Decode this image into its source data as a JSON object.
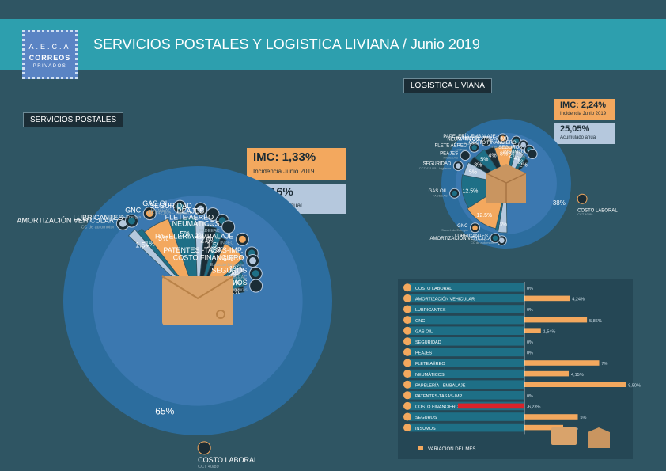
{
  "header": {
    "title": "SERVICIOS POSTALES Y LOGISTICA LIVIANA  / Junio 2019"
  },
  "logo": {
    "line1": "A.E.C.A",
    "line2": "CORREOS",
    "line3": "PRIVADOS"
  },
  "postales": {
    "section_label": "SERVICIOS POSTALES",
    "imc_title": "IMC: 1,33%",
    "imc_sub": "Incidencia Junio 2019",
    "acc_title": "22,16%",
    "acc_sub": "Acumulado anual"
  },
  "logistica": {
    "section_label": "LOGISTICA LIVIANA",
    "imc_title": "IMC: 2,24%",
    "imc_sub": "Incidencia Junio 2019",
    "acc_title": "25,05%",
    "acc_sub": "Acumulado anual"
  },
  "legend": {
    "label": "VARIACIÓN DEL MES"
  },
  "colors": {
    "orange": "#f3a85e",
    "blue": "#3b78b0",
    "teal": "#1e6f86",
    "light": "#b5c8dd",
    "dark": "#1b2d36",
    "red": "#d9232a"
  },
  "chart_data": [
    {
      "type": "pie",
      "title": "SERVICIOS POSTALES",
      "unit": "%",
      "slices": [
        {
          "name": "COSTO LABORAL",
          "note": "CCT 40/89",
          "value": 65,
          "label": "65%",
          "color": "#3b78b0",
          "icon": "envelope-icon"
        },
        {
          "name": "AMORTIZACIÓN VEHICULAR",
          "note": "CC de automotor",
          "value": 1.5,
          "label": "1.5%",
          "color": "#b5c8dd",
          "icon": "truck-icon"
        },
        {
          "name": "LUBRICANTES",
          "note": "",
          "value": 1,
          "label": "1%",
          "color": "#1e6f86",
          "icon": "oil-can-icon"
        },
        {
          "name": "GNC",
          "note": "Secret. de Energía",
          "value": 5,
          "label": "5%",
          "color": "#f3a85e",
          "icon": "gas-cylinder-icon"
        },
        {
          "name": "GAS OIL",
          "note": "FADEEAC",
          "value": 5,
          "label": "5%",
          "color": "#1e6f86",
          "icon": "fuel-pump-icon"
        },
        {
          "name": "SEGURIDAD",
          "note": "CCT 421/05 - Vigilador",
          "value": 2,
          "label": "2%",
          "color": "#b5c8dd",
          "icon": "guard-icon"
        },
        {
          "name": "PEAJES",
          "note": "FADEEAC",
          "value": 2.5,
          "label": "2.5%",
          "color": "#1b2d36",
          "icon": "toll-icon"
        },
        {
          "name": "FLETE AÉREO",
          "note": "Jet Pack",
          "value": 1.5,
          "label": "1.5%",
          "color": "#1e6f86",
          "icon": "plane-icon"
        },
        {
          "name": "NEUMÁTICOS",
          "note": "FADEEAC",
          "value": 1.5,
          "label": "1.5%",
          "color": "#1b2d36",
          "icon": "tire-icon"
        },
        {
          "name": "PAPELERÍA-EMBALAJE",
          "note": "INDEC",
          "value": 6,
          "label": "6%",
          "color": "#f3a85e",
          "icon": "package-icon"
        },
        {
          "name": "PATENTES -TASAS-IMP.",
          "note": "Boletos",
          "value": 1,
          "label": "1%",
          "color": "#1e6f86",
          "icon": "license-plate-icon"
        },
        {
          "name": "COSTO FINANCIERO",
          "note": "Extracto bancario",
          "value": 2,
          "label": "2%",
          "color": "#b5c8dd",
          "icon": "chart-icon"
        },
        {
          "name": "SEGUROS",
          "note": "FADEEAC",
          "value": 4,
          "label": "4%",
          "color": "#1e6f86",
          "icon": "shield-icon"
        },
        {
          "name": "INSUMOS",
          "note": "Facturas",
          "value": 2,
          "label": "2%",
          "color": "#1b2d36",
          "icon": "invoice-icon"
        }
      ]
    },
    {
      "type": "pie",
      "title": "LOGISTICA LIVIANA",
      "unit": "%",
      "slices": [
        {
          "name": "COSTO LABORAL",
          "note": "CCT 40/89",
          "value": 38,
          "label": "38%",
          "color": "#3b78b0"
        },
        {
          "name": "AMORTIZACIÓN VEHICULAR",
          "note": "CC de automotor",
          "value": 3,
          "label": "3%",
          "color": "#b5c8dd"
        },
        {
          "name": "LUBRICANTES",
          "note": "FADEEAC",
          "value": 1,
          "label": "",
          "color": "#1e6f86"
        },
        {
          "name": "GNC",
          "note": "Secret. de Energía",
          "value": 12.5,
          "label": "12.5%",
          "color": "#f3a85e"
        },
        {
          "name": "GAS OIL",
          "note": "FADEEAC",
          "value": 12.5,
          "label": "12.5%",
          "color": "#1e6f86"
        },
        {
          "name": "SEGURIDAD",
          "note": "CCT 421/05 - Vigilador",
          "value": 5,
          "label": "5%",
          "color": "#b5c8dd"
        },
        {
          "name": "PEAJES",
          "note": "FADEEAC",
          "value": 3,
          "label": "3%",
          "color": "#1b2d36"
        },
        {
          "name": "FLETE AÉREO",
          "note": "Jet Pack",
          "value": 5,
          "label": "5%",
          "color": "#1e6f86"
        },
        {
          "name": "NEUMÁTICOS",
          "note": "FADEEAC",
          "value": 4,
          "label": "4%",
          "color": "#1b2d36"
        },
        {
          "name": "PAPELERÍA-EMBALAJE",
          "note": "INDEC",
          "value": 8,
          "label": "8%",
          "color": "#f3a85e"
        },
        {
          "name": "PATENTES -TASAS-IMP.",
          "note": "Boletos",
          "value": 2,
          "label": "2%",
          "color": "#1e6f86"
        },
        {
          "name": "COSTO FINANCIERO",
          "note": "Extracto bancario",
          "value": 4,
          "label": "4%",
          "color": "#b5c8dd"
        },
        {
          "name": "SEGUROS",
          "note": "FADEEAC",
          "value": 2,
          "label": "2%",
          "color": "#1e6f86"
        },
        {
          "name": "INSUMOS",
          "note": "Facturas",
          "value": 2,
          "label": "2%",
          "color": "#1b2d36"
        }
      ]
    },
    {
      "type": "bar",
      "orientation": "horizontal",
      "title": "",
      "series_name": "VARIACIÓN DEL MES",
      "unit": "%",
      "categories": [
        "COSTO LABORAL",
        "AMORTIZACIÓN VEHICULAR",
        "LUBRICANTES",
        "GNC",
        "GAS OIL",
        "SEGURIDAD",
        "PEAJES",
        "FLETE AÉREO",
        "NEUMÁTICOS",
        "PAPELERÍA - EMBALAJE",
        "PATENTES-TASAS-IMP.",
        "COSTO FINANCIERO",
        "SEGUROS",
        "INSUMOS"
      ],
      "values": [
        0,
        4.24,
        0,
        5.86,
        1.54,
        0,
        0,
        7,
        4.15,
        9.5,
        0,
        -6.23,
        5,
        3.63
      ],
      "value_labels": [
        "0%",
        "4,24%",
        "0%",
        "5,86%",
        "1,54%",
        "0%",
        "0%",
        "7%",
        "4,15%",
        "9,50%",
        "0%",
        "-6,23%",
        "5%",
        "3,63%"
      ],
      "xlim": [
        -7,
        10
      ]
    }
  ]
}
